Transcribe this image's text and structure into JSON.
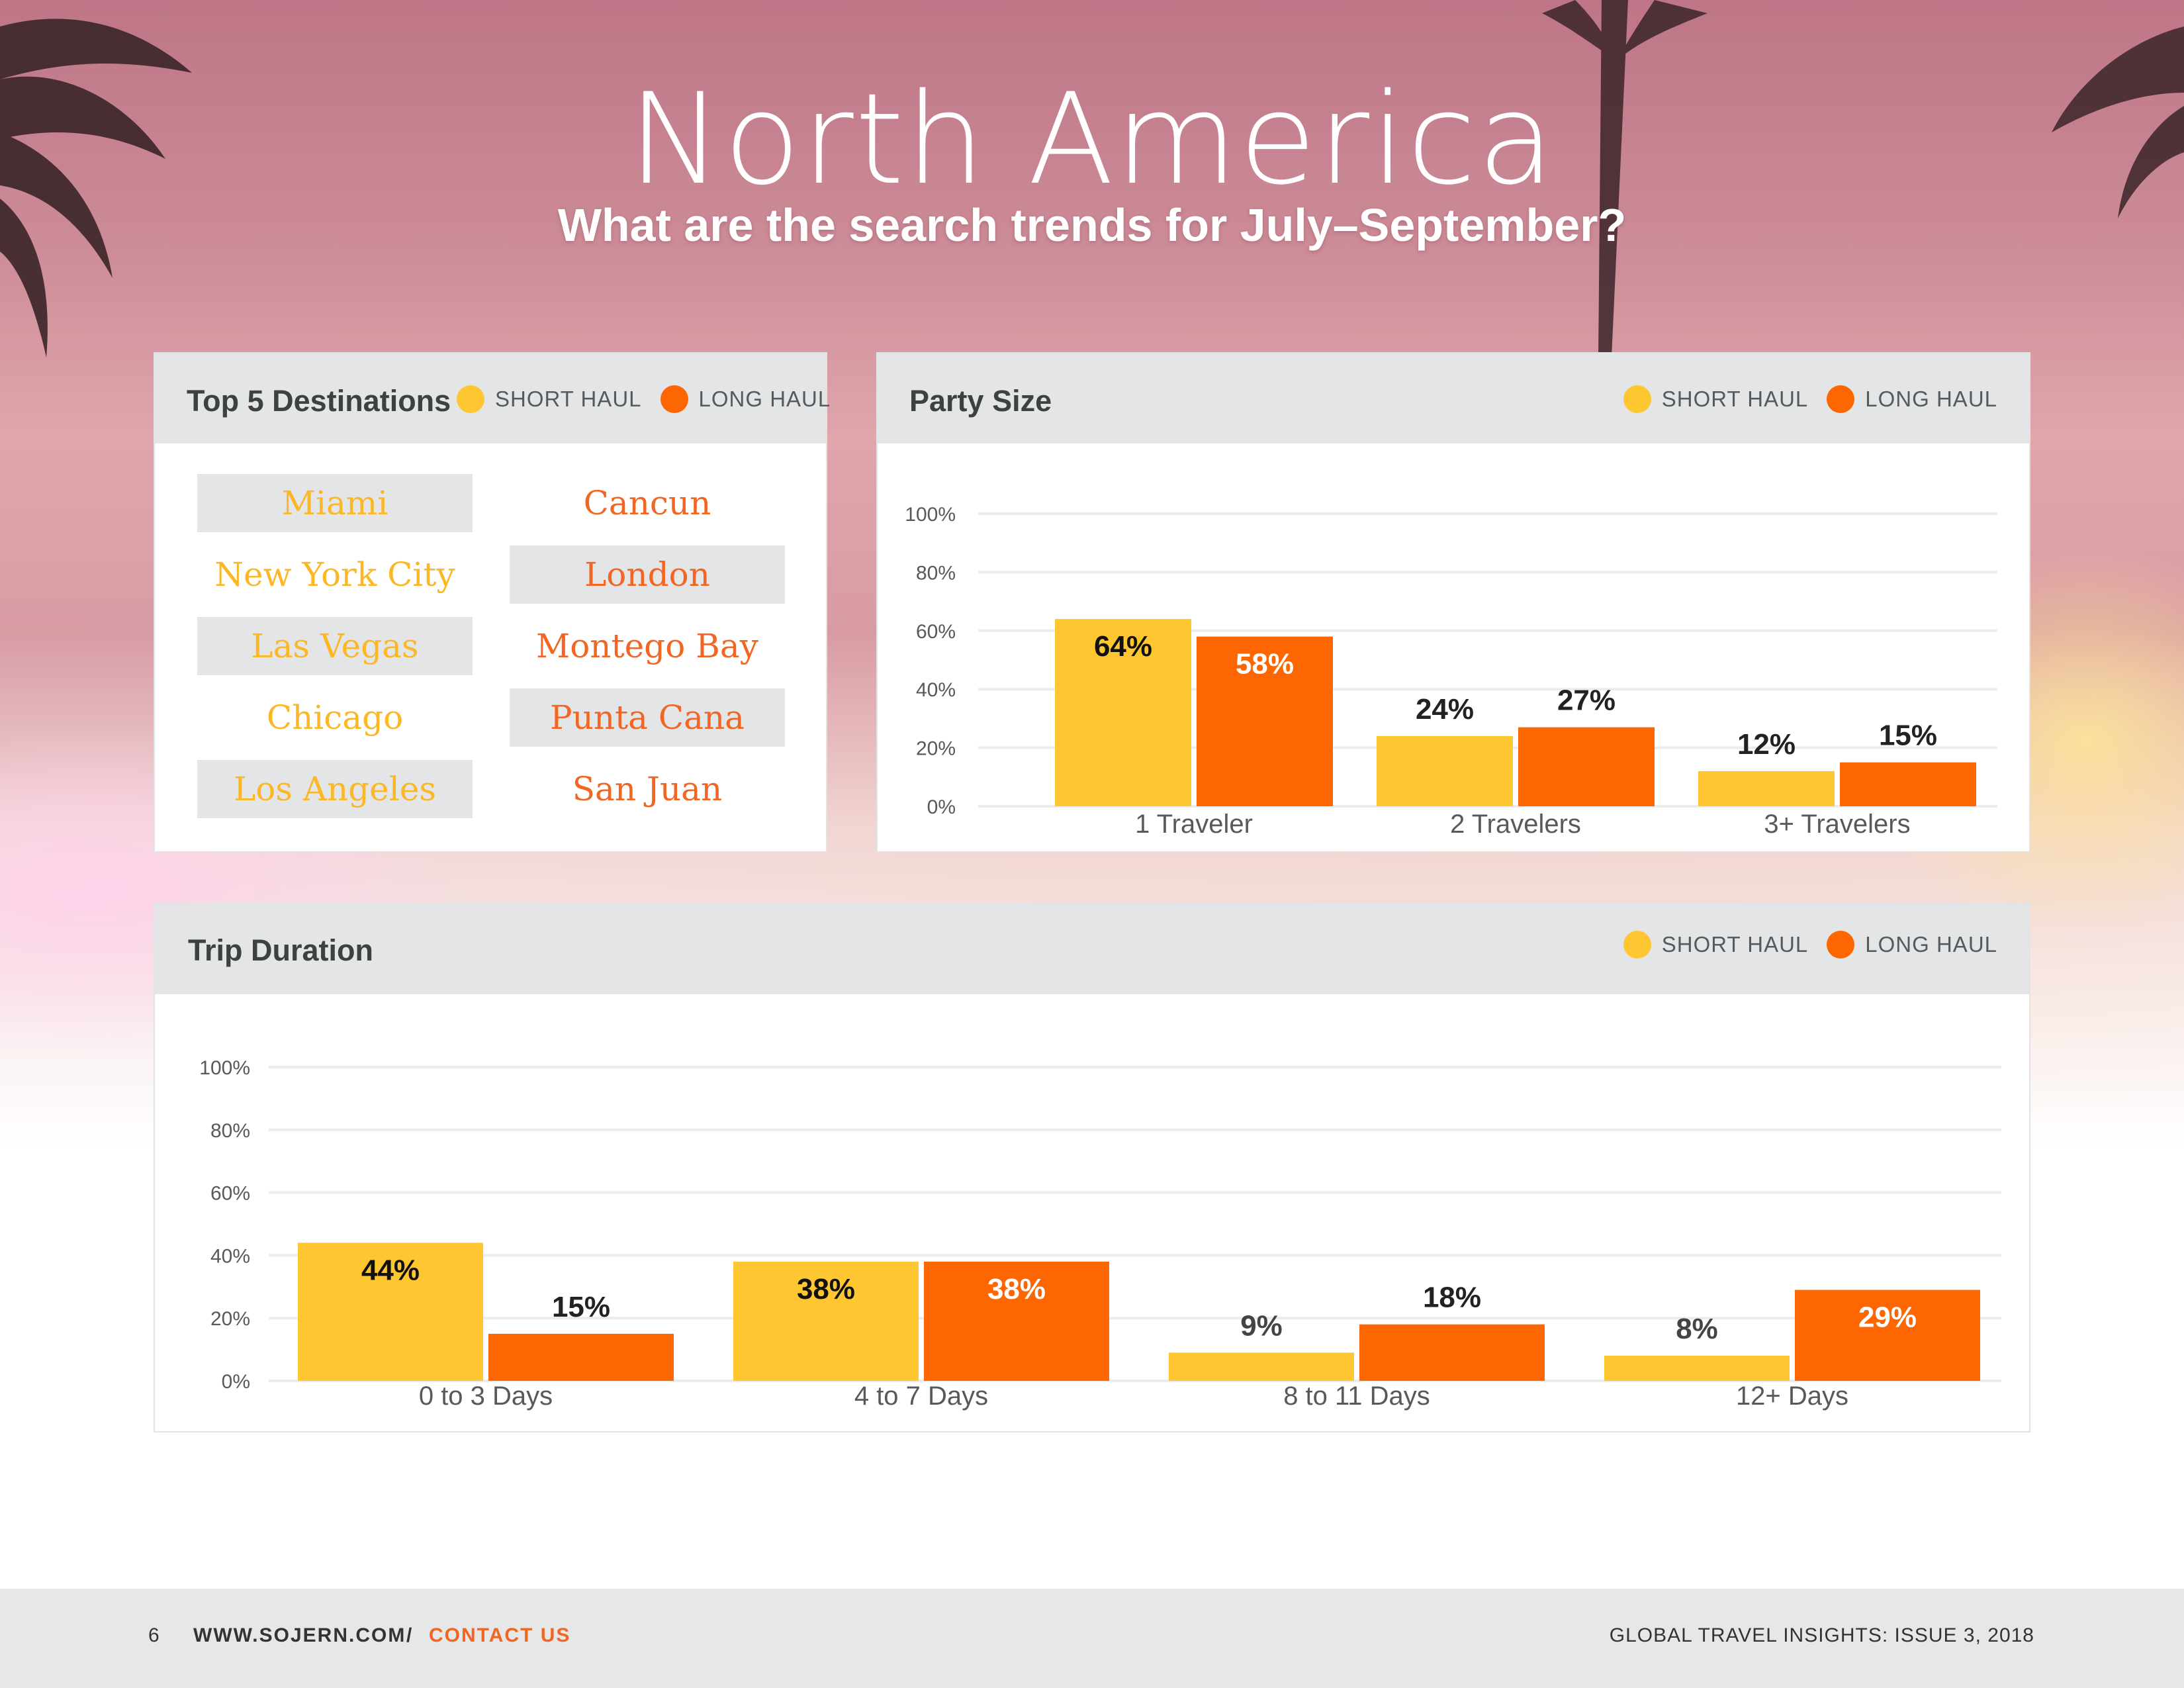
{
  "page": {
    "title": "North America",
    "subtitle": "What are the search trends for July–September?"
  },
  "legend": {
    "short_label": "SHORT HAUL",
    "long_label": "LONG HAUL",
    "short_color": "#fec630",
    "long_color": "#fe6601"
  },
  "destinations": {
    "title": "Top 5 Destinations",
    "short_haul": [
      "Miami",
      "New York City",
      "Las Vegas",
      "Chicago",
      "Los Angeles"
    ],
    "long_haul": [
      "Cancun",
      "London",
      "Montego Bay",
      "Punta Cana",
      "San Juan"
    ]
  },
  "party_size": {
    "title": "Party Size"
  },
  "trip_duration": {
    "title": "Trip Duration"
  },
  "chart_data": [
    {
      "id": "party-size",
      "type": "bar",
      "title": "Party Size",
      "categories": [
        "1 Traveler",
        "2 Travelers",
        "3+ Travelers"
      ],
      "series": [
        {
          "name": "SHORT HAUL",
          "values": [
            64,
            24,
            12
          ]
        },
        {
          "name": "LONG HAUL",
          "values": [
            58,
            27,
            15
          ]
        }
      ],
      "data_labels": [
        [
          "64%",
          "24%",
          "12%"
        ],
        [
          "58%",
          "27%",
          "15%"
        ]
      ],
      "yticks": [
        "0%",
        "20%",
        "40%",
        "60%",
        "80%",
        "100%"
      ],
      "ylim": [
        0,
        100
      ],
      "grid": true,
      "legend": "top-right"
    },
    {
      "id": "trip-duration",
      "type": "bar",
      "title": "Trip Duration",
      "categories": [
        "0 to 3 Days",
        "4 to 7 Days",
        "8 to 11 Days",
        "12+ Days"
      ],
      "series": [
        {
          "name": "SHORT HAUL",
          "values": [
            44,
            38,
            9,
            8
          ]
        },
        {
          "name": "LONG HAUL",
          "values": [
            15,
            38,
            18,
            29
          ]
        }
      ],
      "data_labels": [
        [
          "44%",
          "38%",
          "9%",
          "8%"
        ],
        [
          "15%",
          "38%",
          "18%",
          "29%"
        ]
      ],
      "yticks": [
        "0%",
        "20%",
        "40%",
        "60%",
        "80%",
        "100%"
      ],
      "ylim": [
        0,
        100
      ],
      "grid": true,
      "legend": "top-right"
    }
  ],
  "footer": {
    "page_number": "6",
    "website": "WWW.SOJERN.COM",
    "separator": "/",
    "contact": "CONTACT US",
    "publication": "GLOBAL TRAVEL INSIGHTS: ISSUE 3, 2018"
  }
}
